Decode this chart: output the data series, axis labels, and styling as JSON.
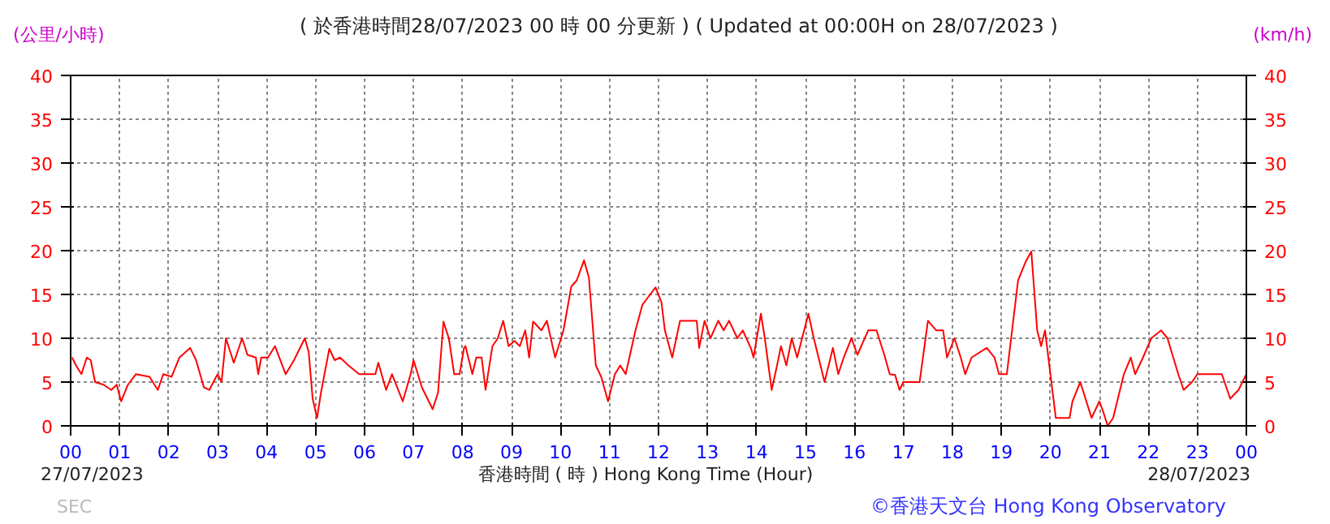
{
  "chart_data": {
    "type": "line",
    "title": "( 於香港時間28/07/2023 00 時 00 分更新 ) ( Updated at 00:00H on 28/07/2023 )",
    "xlabel": "香港時間 ( 時 ) Hong Kong Time (Hour)",
    "ylabel": "(公里/小時)",
    "y2label": "(km/h)",
    "annotations": [
      "27/07/2023",
      "28/07/2023",
      "SEC",
      "©香港天文台 Hong Kong Observatory"
    ],
    "series": [
      {
        "color": "#ff0000",
        "x": [
          0.03,
          0.11,
          0.22,
          0.33,
          0.41,
          0.5,
          0.67,
          0.83,
          0.94,
          1.03,
          1.17,
          1.33,
          1.61,
          1.78,
          1.89,
          2.06,
          2.22,
          2.44,
          2.56,
          2.72,
          2.83,
          3.0,
          3.08,
          3.17,
          3.33,
          3.5,
          3.61,
          3.78,
          3.83,
          3.89,
          4.03,
          4.17,
          4.39,
          4.56,
          4.78,
          4.86,
          4.94,
          5.03,
          5.11,
          5.28,
          5.39,
          5.5,
          5.67,
          5.89,
          6.22,
          6.28,
          6.44,
          6.56,
          6.78,
          6.94,
          7.0,
          7.17,
          7.39,
          7.5,
          7.61,
          7.72,
          7.83,
          7.94,
          8.03,
          8.06,
          8.2,
          8.28,
          8.39,
          8.47,
          8.61,
          8.72,
          8.83,
          8.94,
          9.06,
          9.17,
          9.28,
          9.36,
          9.44,
          9.61,
          9.72,
          9.89,
          10.06,
          10.22,
          10.33,
          10.48,
          10.58,
          10.72,
          10.83,
          10.97,
          11.11,
          11.22,
          11.33,
          11.53,
          11.67,
          11.83,
          11.94,
          12.06,
          12.13,
          12.28,
          12.44,
          12.78,
          12.83,
          12.94,
          13.06,
          13.22,
          13.33,
          13.44,
          13.61,
          13.72,
          13.89,
          13.94,
          14.09,
          14.17,
          14.31,
          14.42,
          14.5,
          14.61,
          14.72,
          14.83,
          15.06,
          15.17,
          15.39,
          15.56,
          15.67,
          15.78,
          15.94,
          16.06,
          16.28,
          16.45,
          16.61,
          16.72,
          16.83,
          16.92,
          17.0,
          17.33,
          17.5,
          17.67,
          17.81,
          17.89,
          18.04,
          18.17,
          18.26,
          18.39,
          18.7,
          18.86,
          18.95,
          19.11,
          19.34,
          19.5,
          19.61,
          19.73,
          19.81,
          19.89,
          20.0,
          20.11,
          20.39,
          20.45,
          20.61,
          20.84,
          21.0,
          21.06,
          21.17,
          21.28,
          21.5,
          21.64,
          21.73,
          21.89,
          22.06,
          22.26,
          22.39,
          22.61,
          22.72,
          22.89,
          23.0,
          23.5,
          23.67,
          23.84,
          24.0
        ],
        "values": [
          7.8,
          6.9,
          5.9,
          7.8,
          7.5,
          5.0,
          4.7,
          4.1,
          4.7,
          2.8,
          4.7,
          5.9,
          5.6,
          4.1,
          5.9,
          5.6,
          7.8,
          8.9,
          7.5,
          4.4,
          4.1,
          5.9,
          5.0,
          10.0,
          7.2,
          10.0,
          8.1,
          7.8,
          5.9,
          7.8,
          7.8,
          9.1,
          5.9,
          7.5,
          10.0,
          8.4,
          3.1,
          0.9,
          3.8,
          8.8,
          7.5,
          7.8,
          6.9,
          5.9,
          5.9,
          7.2,
          4.1,
          5.9,
          2.8,
          5.9,
          7.5,
          4.4,
          1.9,
          3.8,
          11.9,
          10.0,
          5.9,
          5.9,
          8.9,
          9.1,
          5.9,
          7.8,
          7.8,
          4.1,
          9.1,
          10.0,
          12.0,
          9.1,
          9.7,
          9.1,
          10.9,
          7.8,
          11.9,
          10.9,
          12.0,
          7.8,
          10.9,
          15.9,
          16.6,
          18.9,
          16.9,
          6.9,
          5.6,
          2.8,
          5.9,
          6.9,
          5.9,
          10.9,
          13.8,
          15.0,
          15.8,
          14.1,
          10.9,
          7.8,
          12.0,
          12.0,
          8.9,
          12.0,
          10.0,
          12.0,
          10.9,
          12.0,
          10.0,
          10.9,
          8.8,
          7.8,
          12.8,
          10.0,
          4.1,
          6.9,
          9.1,
          6.9,
          10.0,
          7.8,
          12.8,
          10.0,
          5.0,
          8.9,
          5.9,
          7.8,
          10.0,
          8.1,
          10.9,
          10.9,
          8.1,
          5.9,
          5.8,
          4.1,
          5.0,
          5.0,
          12.0,
          10.9,
          10.9,
          7.8,
          10.0,
          7.8,
          5.9,
          7.8,
          8.9,
          7.8,
          5.9,
          5.9,
          16.6,
          18.8,
          19.9,
          10.9,
          9.1,
          10.9,
          5.9,
          0.9,
          0.9,
          2.8,
          5.0,
          0.9,
          2.8,
          1.9,
          0.0,
          0.9,
          5.9,
          7.8,
          5.9,
          7.8,
          10.0,
          10.9,
          10.0,
          5.9,
          4.1,
          5.0,
          5.9,
          5.9,
          3.1,
          4.1,
          5.9
        ]
      }
    ],
    "xlim": [
      0,
      24
    ],
    "xticks": [
      {
        "value": 0,
        "label": "00"
      },
      {
        "value": 1,
        "label": "01"
      },
      {
        "value": 2,
        "label": "02"
      },
      {
        "value": 3,
        "label": "03"
      },
      {
        "value": 4,
        "label": "04"
      },
      {
        "value": 5,
        "label": "05"
      },
      {
        "value": 6,
        "label": "06"
      },
      {
        "value": 7,
        "label": "07"
      },
      {
        "value": 8,
        "label": "08"
      },
      {
        "value": 9,
        "label": "09"
      },
      {
        "value": 10,
        "label": "10"
      },
      {
        "value": 11,
        "label": "11"
      },
      {
        "value": 12,
        "label": "12"
      },
      {
        "value": 13,
        "label": "13"
      },
      {
        "value": 14,
        "label": "14"
      },
      {
        "value": 15,
        "label": "15"
      },
      {
        "value": 16,
        "label": "16"
      },
      {
        "value": 17,
        "label": "17"
      },
      {
        "value": 18,
        "label": "18"
      },
      {
        "value": 19,
        "label": "19"
      },
      {
        "value": 20,
        "label": "20"
      },
      {
        "value": 21,
        "label": "21"
      },
      {
        "value": 22,
        "label": "22"
      },
      {
        "value": 23,
        "label": "23"
      },
      {
        "value": 24,
        "label": "00"
      }
    ],
    "ylim": [
      0,
      40
    ],
    "yticks": [
      0,
      5,
      10,
      15,
      20,
      25,
      30,
      35,
      40
    ],
    "y2lim": [
      0,
      40
    ],
    "y2ticks": [
      0,
      5,
      10,
      15,
      20,
      25,
      30,
      35,
      40
    ],
    "grid": true,
    "line_style": "solid"
  }
}
